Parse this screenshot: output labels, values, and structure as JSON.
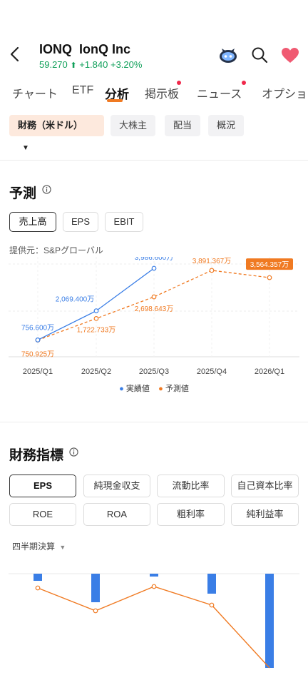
{
  "header": {
    "symbol": "IONQ",
    "company": "IonQ Inc",
    "price": "59.270",
    "arrow": "⬆",
    "change": "+1.840",
    "change_pct": "+3.20%"
  },
  "tabs": [
    "チャート",
    "ETF",
    "分析",
    "掲示板",
    "ニュース",
    "オプショ"
  ],
  "active_tab": "分析",
  "filter_chips": {
    "primary": "財務（米ドル）",
    "others": [
      "大株主",
      "配当",
      "概況"
    ]
  },
  "forecast": {
    "title": "予測",
    "segments": [
      "売上高",
      "EPS",
      "EBIT"
    ],
    "provider": "提供元：S&Pグローバル"
  },
  "chart_data": {
    "type": "line",
    "x": [
      "2025/Q1",
      "2025/Q2",
      "2025/Q3",
      "2025/Q4",
      "2026/Q1"
    ],
    "series": [
      {
        "name": "実績値",
        "color": "#3a7ee6",
        "values": [
          7566000,
          20694000,
          39866000,
          null,
          null
        ],
        "labels": [
          "756.600万",
          "2,069.400万",
          "3,986.600万",
          "",
          ""
        ]
      },
      {
        "name": "予測値",
        "color": "#f07a22",
        "values": [
          7509250,
          17227330,
          26986430,
          38913670,
          35643570
        ],
        "labels": [
          "750.925万",
          "1,722.733万",
          "2,698.643万",
          "3,891.367万",
          "3,564.357万"
        ]
      }
    ],
    "grid": true,
    "legend": "bottom"
  },
  "metrics": {
    "title": "財務指標",
    "buttons": [
      "EPS",
      "純現金収支",
      "流動比率",
      "自己資本比率",
      "ROE",
      "ROA",
      "粗利率",
      "純利益率"
    ],
    "period": "四半期決算"
  },
  "eps_chart": {
    "type": "bar+line",
    "bar_color": "#3a7ee6",
    "line_color": "#f07a22",
    "bars": [
      -0.25,
      -1.0,
      -0.1,
      -0.7,
      -3.3
    ],
    "line": [
      -0.2,
      -1.0,
      -0.15,
      -0.8,
      -3.0
    ]
  },
  "colors": {
    "accent": "#f07a22",
    "up": "#10a05a",
    "notification": "#f0284a",
    "heart": "#f05a72"
  }
}
